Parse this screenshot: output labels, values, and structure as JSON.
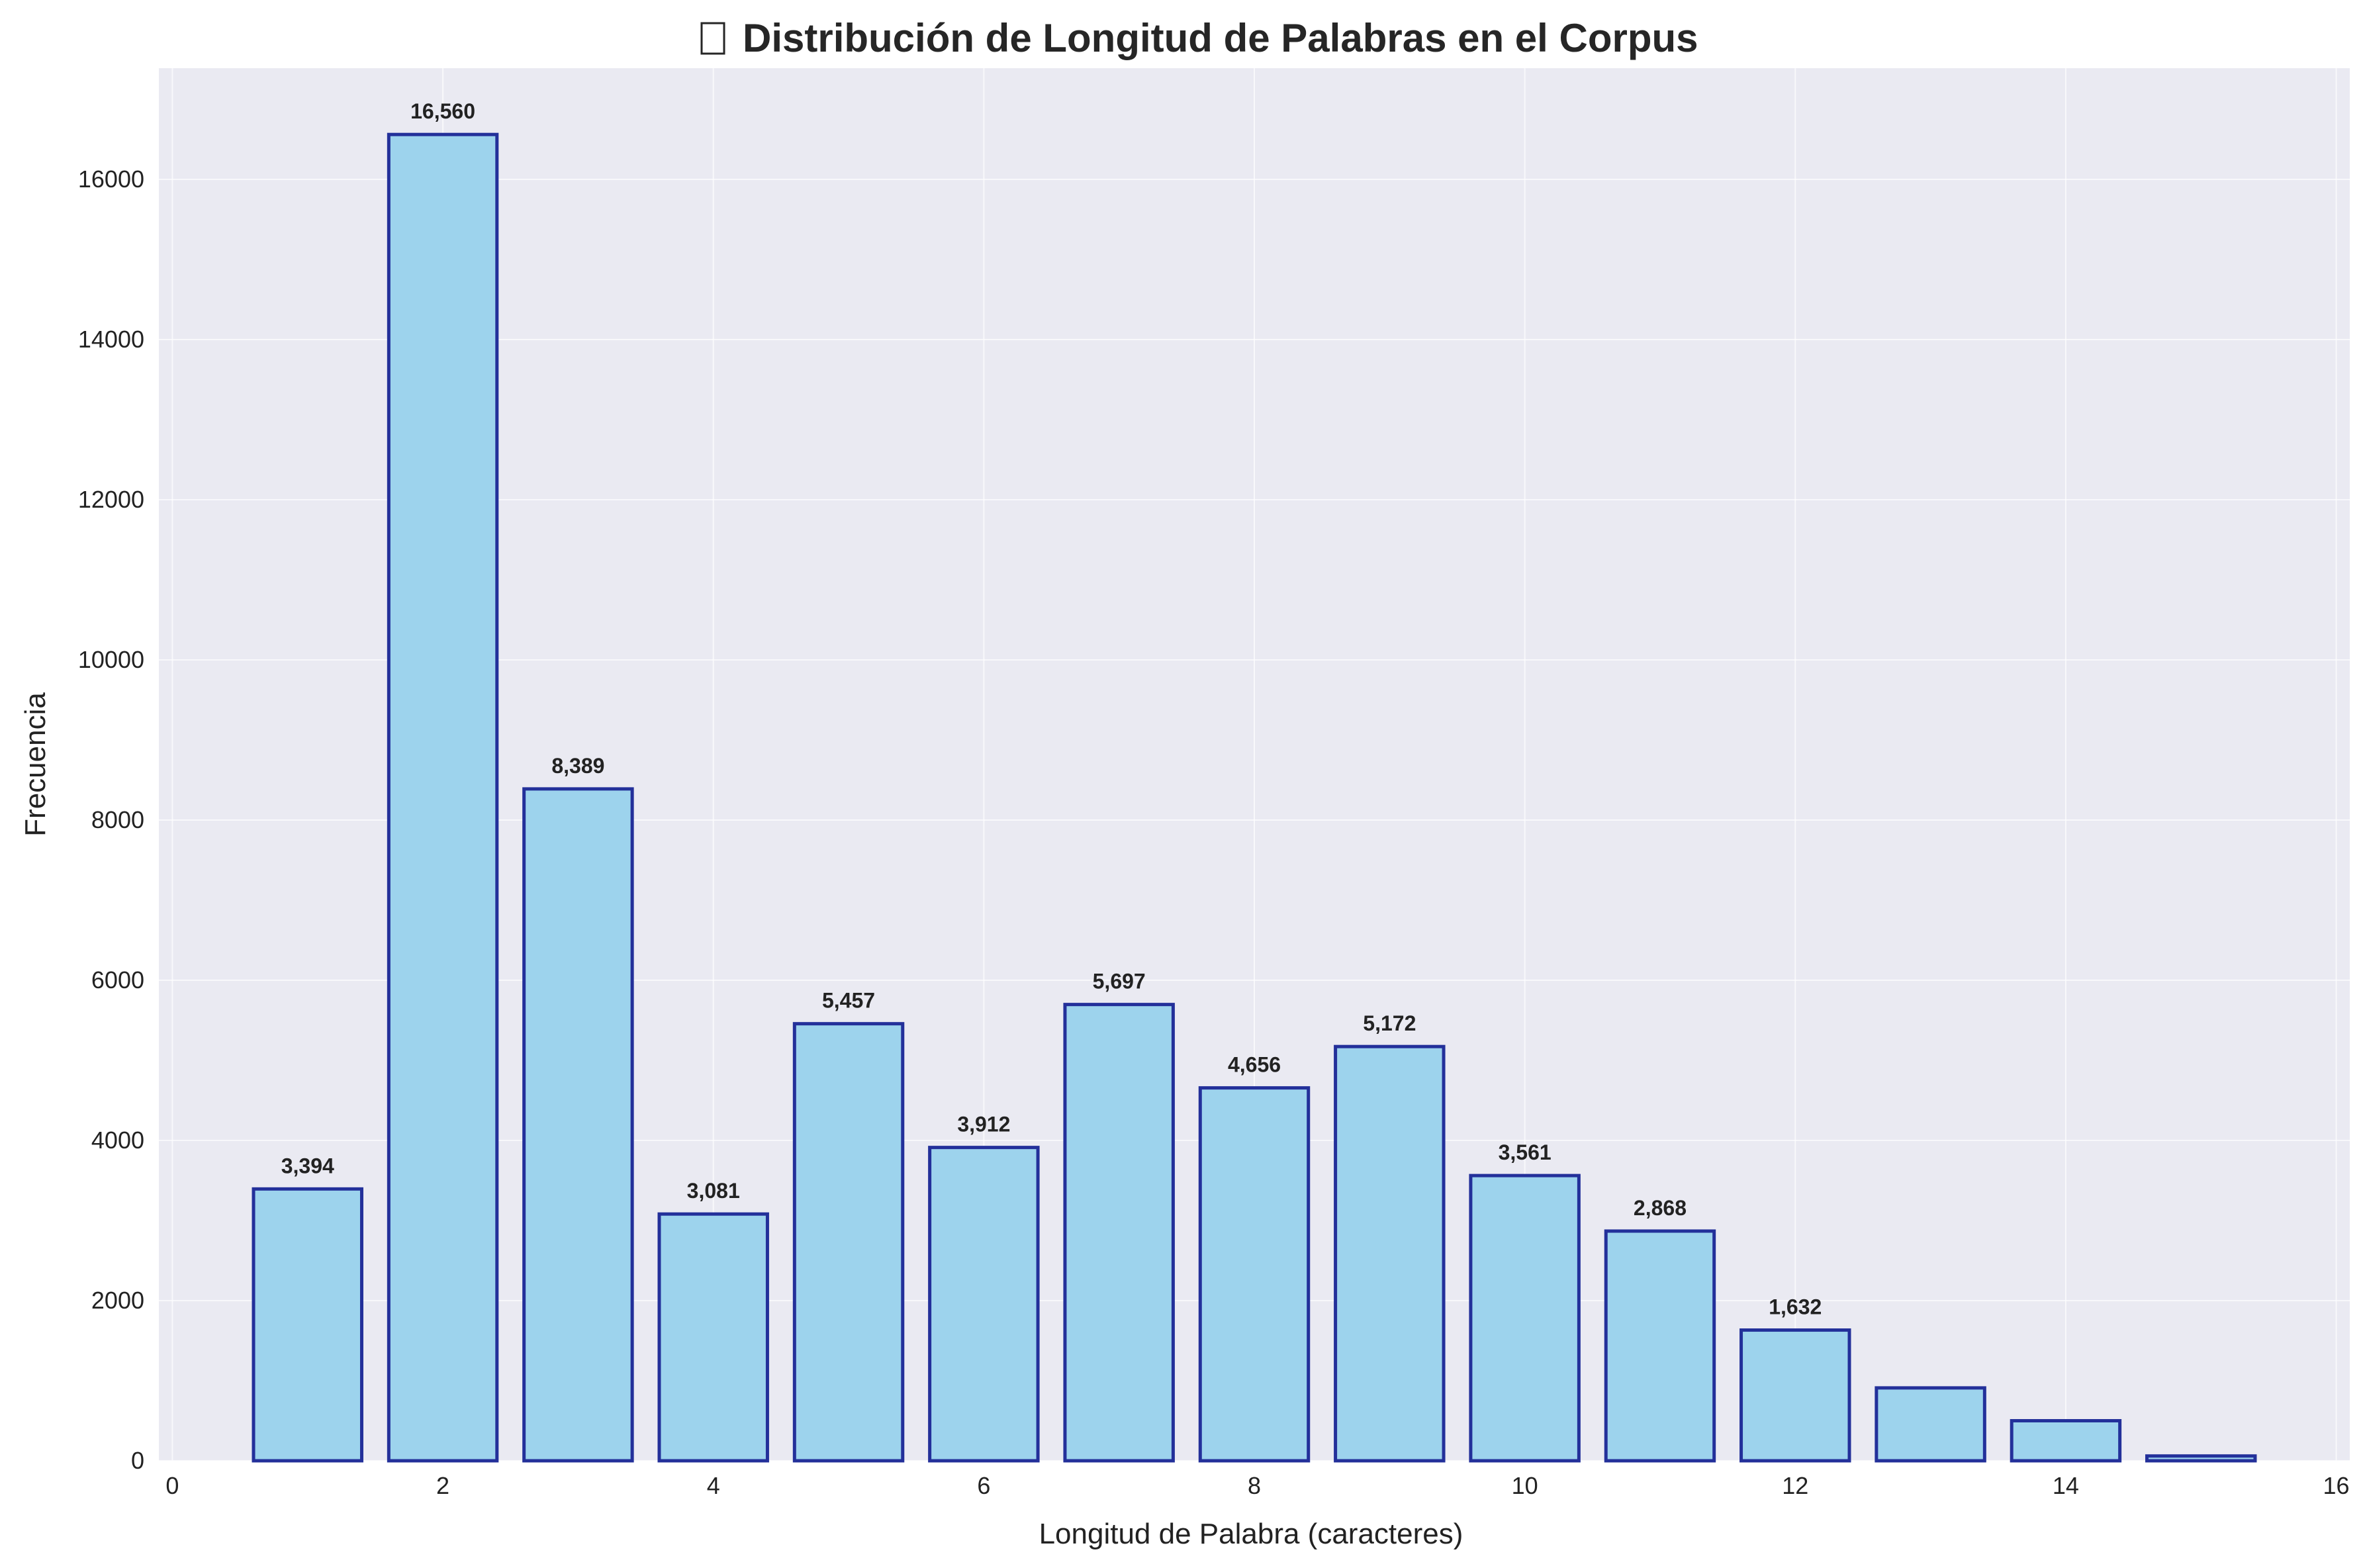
{
  "chart_data": {
    "type": "bar",
    "title": "Distribución de Longitud de Palabras en el Corpus",
    "title_icon": "chart-icon",
    "xlabel": "Longitud de Palabra (caracteres)",
    "ylabel": "Frecuencia",
    "x": [
      1,
      2,
      3,
      4,
      5,
      6,
      7,
      8,
      9,
      10,
      11,
      12,
      13,
      14,
      15
    ],
    "values": [
      3394,
      16560,
      8389,
      3081,
      5457,
      3912,
      5697,
      4656,
      5172,
      3561,
      2868,
      1632,
      910,
      500,
      60
    ],
    "data_labels": [
      "3,394",
      "16,560",
      "8,389",
      "3,081",
      "5,457",
      "3,912",
      "5,697",
      "4,656",
      "5,172",
      "3,561",
      "2,868",
      "1,632",
      "",
      "",
      ""
    ],
    "xlim": [
      -0.1,
      16.1
    ],
    "ylim": [
      0,
      17388
    ],
    "x_ticks": [
      0,
      2,
      4,
      6,
      8,
      10,
      12,
      14,
      16
    ],
    "y_ticks": [
      0,
      2000,
      4000,
      6000,
      8000,
      10000,
      12000,
      14000,
      16000
    ],
    "grid": true,
    "colors": {
      "bar_fill": "#9dd3ed",
      "bar_edge": "#23309a",
      "plot_background": "#eaeaf2",
      "grid": "#ffffff"
    }
  }
}
